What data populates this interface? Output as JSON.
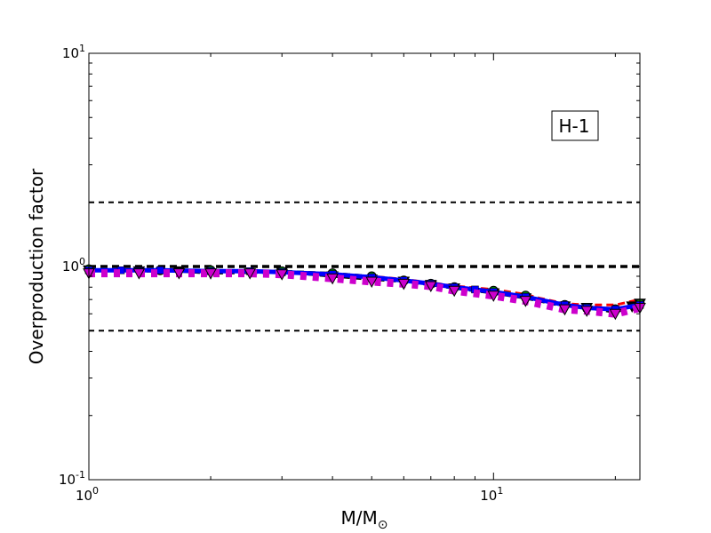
{
  "chart_data": {
    "type": "line",
    "xscale": "log",
    "yscale": "log",
    "xlim": [
      1,
      23
    ],
    "ylim": [
      0.1,
      10
    ],
    "xlabel": "M/M",
    "xlabel_subscript": "⊙",
    "ylabel": "Overproduction factor",
    "annotation": "H-1",
    "x_ticks": [
      {
        "value": 1,
        "base": "10",
        "exp": "0"
      },
      {
        "value": 10,
        "base": "10",
        "exp": "1"
      }
    ],
    "y_ticks": [
      {
        "value": 0.1,
        "base": "10",
        "exp": "-1"
      },
      {
        "value": 1,
        "base": "10",
        "exp": "0"
      },
      {
        "value": 10,
        "base": "10",
        "exp": "1"
      }
    ],
    "reference_lines": [
      {
        "y": 2.0,
        "style": "dashed",
        "color": "#000000",
        "width": "thin"
      },
      {
        "y": 1.0,
        "style": "dashed",
        "color": "#000000",
        "width": "thick"
      },
      {
        "y": 0.5,
        "style": "dashed",
        "color": "#000000",
        "width": "thin"
      }
    ],
    "series": [
      {
        "color": "#ff0000",
        "line": "dashed",
        "marker": "none",
        "x": [
          1,
          1.5,
          2,
          3,
          4,
          5,
          6,
          7,
          8,
          10,
          12,
          13,
          15,
          17,
          20,
          23
        ],
        "y": [
          0.96,
          0.96,
          0.95,
          0.95,
          0.93,
          0.9,
          0.87,
          0.84,
          0.81,
          0.78,
          0.74,
          0.71,
          0.67,
          0.66,
          0.66,
          0.7
        ]
      },
      {
        "color": "#000000",
        "line": "dashed",
        "marker": "triangle-down",
        "x": [
          1,
          1.33,
          1.67,
          2,
          3,
          4,
          5,
          6,
          7,
          8,
          10,
          12,
          15,
          17,
          20,
          22,
          23
        ],
        "y": [
          0.96,
          0.95,
          0.95,
          0.93,
          0.94,
          0.9,
          0.87,
          0.85,
          0.82,
          0.79,
          0.75,
          0.71,
          0.65,
          0.64,
          0.61,
          0.65,
          0.67
        ]
      },
      {
        "color": "#008000",
        "line": "dashed",
        "marker": "circle",
        "x": [
          1,
          1.5,
          2,
          3,
          4,
          5,
          6,
          7,
          8,
          10,
          12,
          15,
          17,
          20,
          23
        ],
        "y": [
          0.97,
          0.96,
          0.96,
          0.95,
          0.93,
          0.9,
          0.86,
          0.83,
          0.8,
          0.77,
          0.73,
          0.66,
          0.64,
          0.63,
          0.67
        ]
      },
      {
        "color": "#0000ff",
        "line": "solid",
        "marker": "square",
        "x": [
          1,
          1.2,
          1.5,
          2,
          2.5,
          3,
          4,
          5,
          6,
          7,
          8,
          9,
          10,
          12,
          15,
          17,
          20,
          23
        ],
        "y": [
          0.96,
          0.96,
          0.96,
          0.95,
          0.95,
          0.94,
          0.92,
          0.89,
          0.86,
          0.83,
          0.8,
          0.78,
          0.76,
          0.72,
          0.66,
          0.64,
          0.63,
          0.66
        ]
      },
      {
        "color": "#cc00cc",
        "line": "dotted",
        "marker": "triangle-down",
        "x": [
          1,
          1.33,
          1.67,
          2,
          2.5,
          3,
          4,
          5,
          6,
          7,
          8,
          10,
          12,
          15,
          17,
          20,
          23
        ],
        "y": [
          0.93,
          0.93,
          0.93,
          0.93,
          0.93,
          0.92,
          0.88,
          0.85,
          0.83,
          0.81,
          0.77,
          0.73,
          0.69,
          0.63,
          0.62,
          0.6,
          0.64
        ]
      }
    ]
  }
}
